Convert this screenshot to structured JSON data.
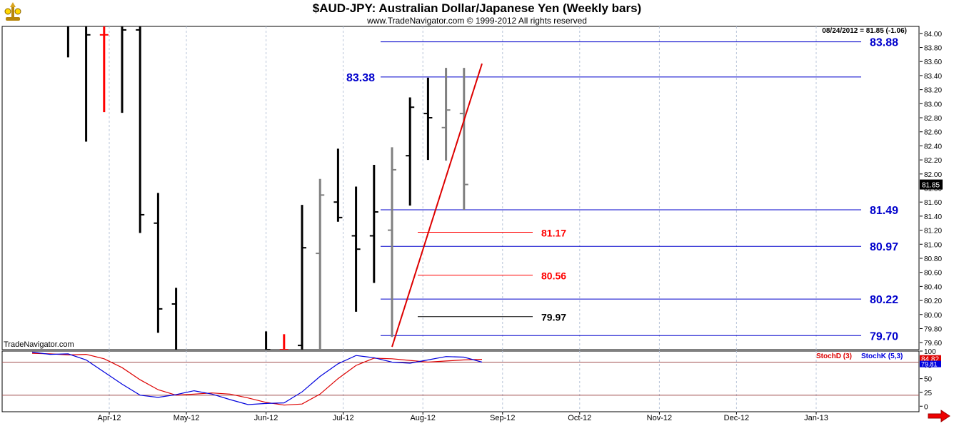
{
  "header": {
    "title": "$AUD-JPY:  Australian Dollar/Japanese Yen  (Weekly bars)",
    "copyright": "www.TradeNavigator.com © 1999-2012 All rights reserved"
  },
  "watermark": "TradeNavigator.com",
  "colors": {
    "up": "#000000",
    "down": "#ff0000",
    "neutral": "#808080",
    "level": "#0000cc",
    "stochD": "#dd0000",
    "stochK": "#0000dd"
  },
  "chart_data": [
    {
      "type": "bar",
      "subtype": "ohlc-weekly",
      "ylim": [
        79.5,
        84.1
      ],
      "y_ticks": [
        "84.00",
        "83.80",
        "83.60",
        "83.40",
        "83.20",
        "83.00",
        "82.80",
        "82.60",
        "82.40",
        "82.20",
        "82.00",
        "81.80",
        "81.60",
        "81.40",
        "81.20",
        "81.00",
        "80.80",
        "80.60",
        "80.40",
        "80.20",
        "80.00",
        "79.80",
        "79.60"
      ],
      "x_ticks": [
        "Apr-12",
        "May-12",
        "Jun-12",
        "Jul-12",
        "Aug-12",
        "Sep-12",
        "Oct-12",
        "Nov-12",
        "Dec-12",
        "Jan-13"
      ],
      "last_label": "08/24/2012 = 81.85 (-1.06)",
      "last_value": "81.85",
      "bars": [
        {
          "date": "2012-03-16",
          "o": 84.2,
          "h": 84.4,
          "l": 83.66,
          "c": 84.25,
          "color": "up"
        },
        {
          "date": "2012-03-23",
          "o": 84.2,
          "h": 84.2,
          "l": 82.46,
          "c": 83.98,
          "color": "up"
        },
        {
          "date": "2012-03-30",
          "o": 83.98,
          "h": 84.2,
          "l": 82.88,
          "c": 83.98,
          "color": "down"
        },
        {
          "date": "2012-04-06",
          "o": 84.3,
          "h": 84.5,
          "l": 82.87,
          "c": 84.05,
          "color": "up"
        },
        {
          "date": "2012-04-13",
          "o": 84.05,
          "h": 84.2,
          "l": 81.16,
          "c": 81.42,
          "color": "up"
        },
        {
          "date": "2012-04-20",
          "o": 81.3,
          "h": 81.73,
          "l": 79.74,
          "c": 80.08,
          "color": "up"
        },
        {
          "date": "2012-04-27",
          "o": 80.15,
          "h": 80.38,
          "l": 79.45,
          "c": 79.45,
          "color": "up"
        },
        {
          "date": "2012-06-01",
          "o": 79.4,
          "h": 79.76,
          "l": 79.4,
          "c": 79.5,
          "color": "up"
        },
        {
          "date": "2012-06-08",
          "o": 79.5,
          "h": 79.72,
          "l": 79.45,
          "c": 79.5,
          "color": "down"
        },
        {
          "date": "2012-06-15",
          "o": 79.56,
          "h": 81.56,
          "l": 79.45,
          "c": 80.95,
          "color": "up"
        },
        {
          "date": "2012-06-22",
          "o": 80.87,
          "h": 81.93,
          "l": 79.45,
          "c": 81.7,
          "color": "neutral"
        },
        {
          "date": "2012-06-29",
          "o": 81.6,
          "h": 82.36,
          "l": 81.32,
          "c": 81.38,
          "color": "up"
        },
        {
          "date": "2012-07-06",
          "o": 81.12,
          "h": 81.82,
          "l": 80.04,
          "c": 80.93,
          "color": "up"
        },
        {
          "date": "2012-07-13",
          "o": 81.12,
          "h": 82.13,
          "l": 80.45,
          "c": 81.46,
          "color": "up"
        },
        {
          "date": "2012-07-20",
          "o": 81.2,
          "h": 82.38,
          "l": 79.68,
          "c": 82.06,
          "color": "neutral"
        },
        {
          "date": "2012-07-27",
          "o": 82.26,
          "h": 83.09,
          "l": 81.55,
          "c": 82.95,
          "color": "up"
        },
        {
          "date": "2012-08-03",
          "o": 82.86,
          "h": 83.37,
          "l": 82.2,
          "c": 82.8,
          "color": "up"
        },
        {
          "date": "2012-08-10",
          "o": 82.66,
          "h": 83.51,
          "l": 82.19,
          "c": 82.91,
          "color": "neutral"
        },
        {
          "date": "2012-08-17",
          "o": 82.86,
          "h": 83.51,
          "l": 81.49,
          "c": 81.85,
          "color": "neutral"
        }
      ],
      "levels": [
        {
          "value": "83.88",
          "color": "level"
        },
        {
          "value": "83.38",
          "color": "level"
        },
        {
          "value": "81.49",
          "color": "level"
        },
        {
          "value": "81.17",
          "color": "down"
        },
        {
          "value": "80.97",
          "color": "level"
        },
        {
          "value": "80.56",
          "color": "down"
        },
        {
          "value": "80.22",
          "color": "level"
        },
        {
          "value": "79.97",
          "color": "up"
        },
        {
          "value": "79.70",
          "color": "level"
        }
      ],
      "trendline": [
        {
          "date": "2012-07-20",
          "y": 79.54
        },
        {
          "date": "2012-08-24",
          "y": 83.57
        }
      ]
    },
    {
      "type": "line",
      "ylim": [
        -10,
        100
      ],
      "y_ticks": [
        "100",
        "75",
        "50",
        "25",
        "0"
      ],
      "legend": [
        "StochD (3)",
        "StochK (5,3)"
      ],
      "value_labels": [
        "84.82",
        "79.81"
      ],
      "reference_lines": [
        80,
        20
      ],
      "series": [
        {
          "name": "StochD (3)",
          "color": "stochD",
          "points": [
            {
              "date": "2012-03-02",
              "y": 96
            },
            {
              "date": "2012-03-09",
              "y": 95
            },
            {
              "date": "2012-03-16",
              "y": 93
            },
            {
              "date": "2012-03-23",
              "y": 94
            },
            {
              "date": "2012-03-30",
              "y": 86
            },
            {
              "date": "2012-04-06",
              "y": 70
            },
            {
              "date": "2012-04-13",
              "y": 48
            },
            {
              "date": "2012-04-20",
              "y": 30
            },
            {
              "date": "2012-04-27",
              "y": 20
            },
            {
              "date": "2012-05-04",
              "y": 22
            },
            {
              "date": "2012-05-11",
              "y": 24
            },
            {
              "date": "2012-05-18",
              "y": 22
            },
            {
              "date": "2012-05-25",
              "y": 15
            },
            {
              "date": "2012-06-01",
              "y": 7
            },
            {
              "date": "2012-06-08",
              "y": 2
            },
            {
              "date": "2012-06-15",
              "y": 4
            },
            {
              "date": "2012-06-22",
              "y": 22
            },
            {
              "date": "2012-06-29",
              "y": 50
            },
            {
              "date": "2012-07-06",
              "y": 74
            },
            {
              "date": "2012-07-13",
              "y": 87
            },
            {
              "date": "2012-07-20",
              "y": 86
            },
            {
              "date": "2012-07-27",
              "y": 83
            },
            {
              "date": "2012-08-03",
              "y": 80
            },
            {
              "date": "2012-08-10",
              "y": 82
            },
            {
              "date": "2012-08-17",
              "y": 84
            },
            {
              "date": "2012-08-24",
              "y": 85
            }
          ]
        },
        {
          "name": "StochK (5,3)",
          "color": "stochK",
          "points": [
            {
              "date": "2012-03-02",
              "y": 98
            },
            {
              "date": "2012-03-09",
              "y": 94
            },
            {
              "date": "2012-03-16",
              "y": 95
            },
            {
              "date": "2012-03-23",
              "y": 84
            },
            {
              "date": "2012-03-30",
              "y": 62
            },
            {
              "date": "2012-04-06",
              "y": 40
            },
            {
              "date": "2012-04-13",
              "y": 20
            },
            {
              "date": "2012-04-20",
              "y": 16
            },
            {
              "date": "2012-04-27",
              "y": 21
            },
            {
              "date": "2012-05-04",
              "y": 28
            },
            {
              "date": "2012-05-11",
              "y": 22
            },
            {
              "date": "2012-05-18",
              "y": 12
            },
            {
              "date": "2012-05-25",
              "y": 3
            },
            {
              "date": "2012-06-01",
              "y": 5
            },
            {
              "date": "2012-06-08",
              "y": 6
            },
            {
              "date": "2012-06-15",
              "y": 26
            },
            {
              "date": "2012-06-22",
              "y": 54
            },
            {
              "date": "2012-06-29",
              "y": 77
            },
            {
              "date": "2012-07-06",
              "y": 92
            },
            {
              "date": "2012-07-13",
              "y": 88
            },
            {
              "date": "2012-07-20",
              "y": 80
            },
            {
              "date": "2012-07-27",
              "y": 78
            },
            {
              "date": "2012-08-03",
              "y": 84
            },
            {
              "date": "2012-08-10",
              "y": 90
            },
            {
              "date": "2012-08-17",
              "y": 89
            },
            {
              "date": "2012-08-24",
              "y": 80
            }
          ]
        }
      ]
    }
  ]
}
